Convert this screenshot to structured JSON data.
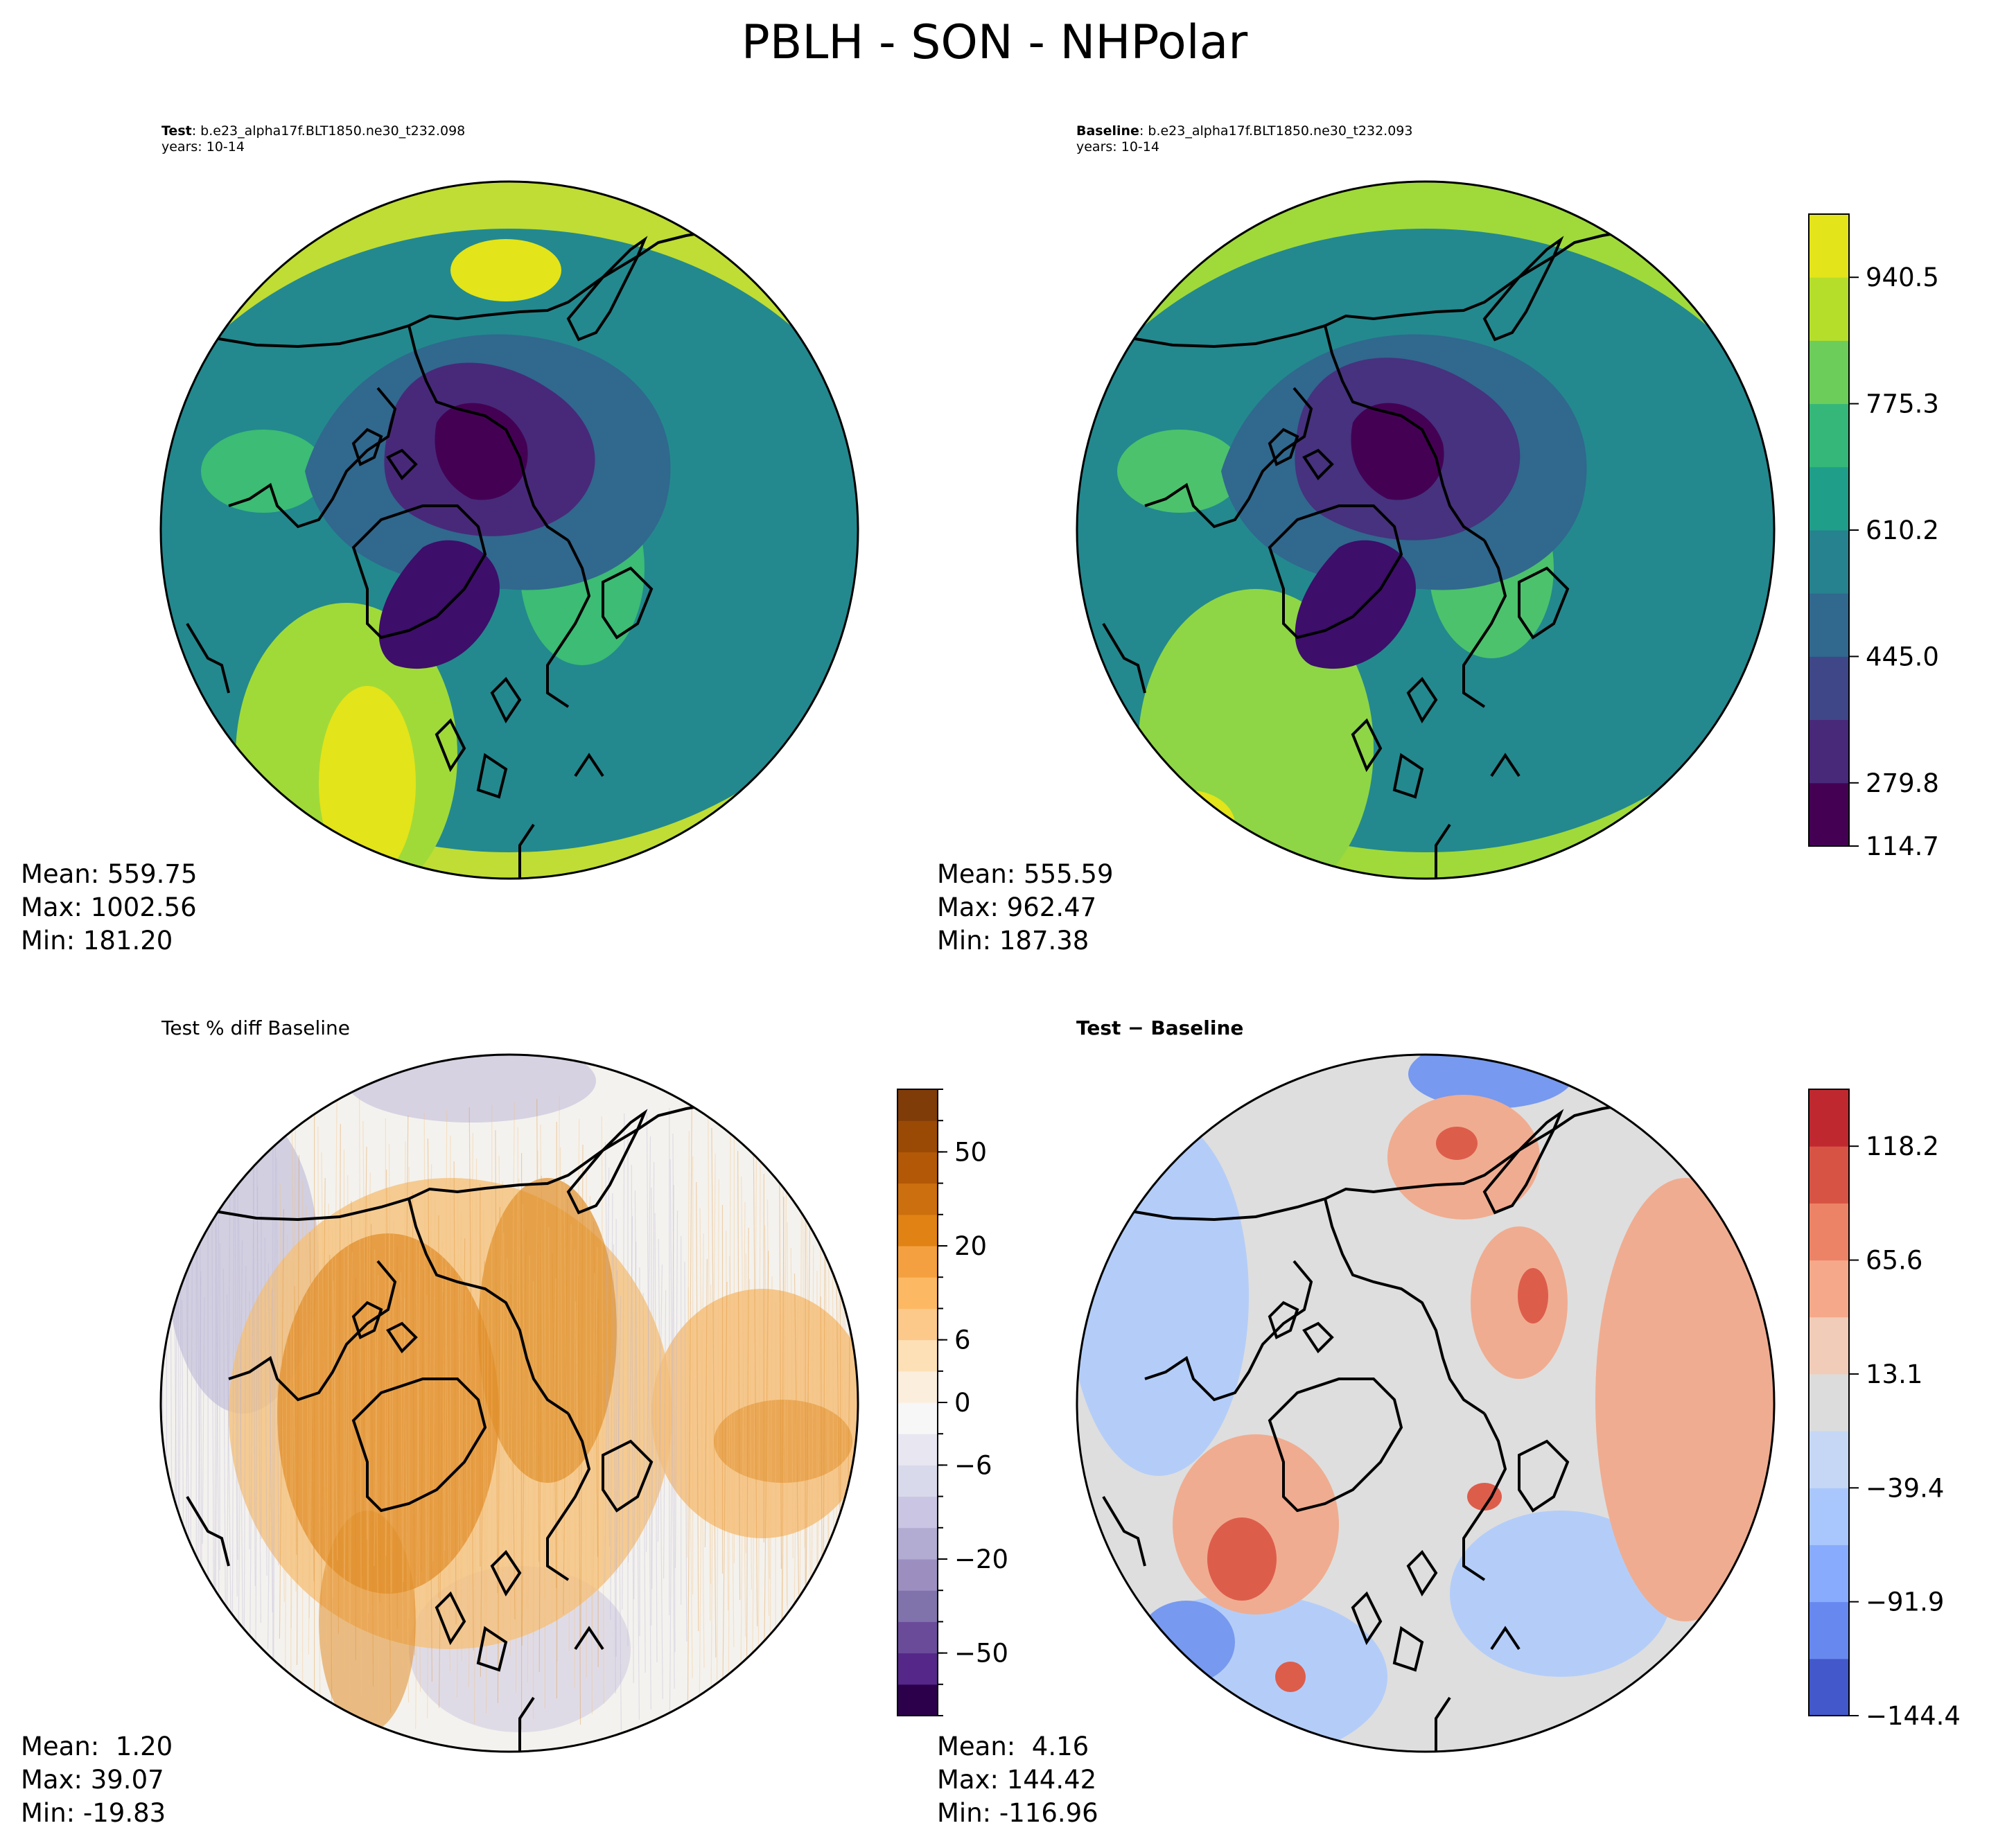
{
  "figure": {
    "title": "PBLH - SON - NHPolar"
  },
  "panels": [
    {
      "id": "test",
      "title_bold": "Test",
      "title_rest": ": b.e23_alpha17f.BLT1850.ne30_t232.098",
      "subtitle": "years: 10-14",
      "stats": {
        "mean": "Mean: 559.75",
        "max": "Max: 1002.56",
        "min": "Min: 181.20"
      }
    },
    {
      "id": "baseline",
      "title_bold": "Baseline",
      "title_rest": ": b.e23_alpha17f.BLT1850.ne30_t232.093",
      "subtitle": "years: 10-14",
      "stats": {
        "mean": "Mean: 555.59",
        "max": "Max: 962.47",
        "min": "Min: 187.38"
      }
    },
    {
      "id": "pctdiff",
      "title_plain": "Test % diff Baseline",
      "stats": {
        "mean": "Mean:  1.20",
        "max": "Max: 39.07",
        "min": "Min: -19.83"
      }
    },
    {
      "id": "diff",
      "title_bold": "Test − Baseline",
      "stats": {
        "mean": "Mean:  4.16",
        "max": "Max: 144.42",
        "min": "Min: -116.96"
      }
    }
  ],
  "colorbars": {
    "main": {
      "ticks": [
        "940.5",
        "775.3",
        "610.2",
        "445.0",
        "279.8",
        "114.7"
      ],
      "tick_values": [
        940.5,
        775.3,
        610.2,
        445.0,
        279.8,
        114.7
      ],
      "colors": [
        "#440154",
        "#482979",
        "#3f4788",
        "#31688e",
        "#26828e",
        "#1f9e89",
        "#35b779",
        "#6ccd5a",
        "#b5de2b",
        "#e3e419"
      ]
    },
    "pctdiff": {
      "ticks": [
        "50",
        "20",
        "6",
        "0",
        "−6",
        "−20",
        "−50"
      ],
      "tick_values": [
        50,
        20,
        6,
        0,
        -6,
        -20,
        -50
      ],
      "colors": [
        "#2d004b",
        "#542788",
        "#6a4b9a",
        "#8073ac",
        "#9c8fc0",
        "#b2abd2",
        "#cac5e2",
        "#d8daeb",
        "#e8e7f1",
        "#f7f7f7",
        "#fbeedd",
        "#fee0b6",
        "#fdc98a",
        "#fdb863",
        "#f4a040",
        "#e08214",
        "#cc6f0e",
        "#b35806",
        "#9a4a05",
        "#7f3b08"
      ]
    },
    "diff": {
      "ticks": [
        "118.2",
        "65.6",
        "13.1",
        "−39.4",
        "−91.9",
        "−144.4"
      ],
      "tick_values": [
        118.2,
        65.6,
        13.1,
        -39.4,
        -91.9,
        -144.4
      ],
      "colors": [
        "#4358cb",
        "#6788ee",
        "#88abfd",
        "#aac7fd",
        "#c5d7f5",
        "#dcdcdc",
        "#f1ccb8",
        "#f5a98a",
        "#ed8366",
        "#d75445",
        "#c0282f"
      ]
    }
  },
  "map_colors": {
    "test": {
      "outer": "#bfdd34",
      "ring": "#23898e",
      "mid": "#31688e",
      "inner": "#482979",
      "pole": "#440154",
      "greenland": "#3d0e6a",
      "warm_band": "#a0da39",
      "peak": "#e3e419",
      "mid_green": "#3cbc75"
    },
    "baseline": {
      "outer": "#9fda3a",
      "ring": "#23898e",
      "mid": "#31688e",
      "inner": "#46327e",
      "pole": "#440154",
      "greenland": "#3d0e6a",
      "warm_band": "#8ed645",
      "peak": "#e3e419",
      "mid_green": "#4cc26c"
    },
    "pctdiff": {
      "base": "#f4f2ee",
      "orange": "#e08e2a",
      "light_orange": "#f5c07a",
      "purple": "#b7b2d6"
    },
    "diff": {
      "base": "#dedede",
      "blue": "#b4cdf8",
      "dark_blue": "#7799ef",
      "red": "#f0ac90",
      "dark_red": "#dd5d4b"
    }
  }
}
